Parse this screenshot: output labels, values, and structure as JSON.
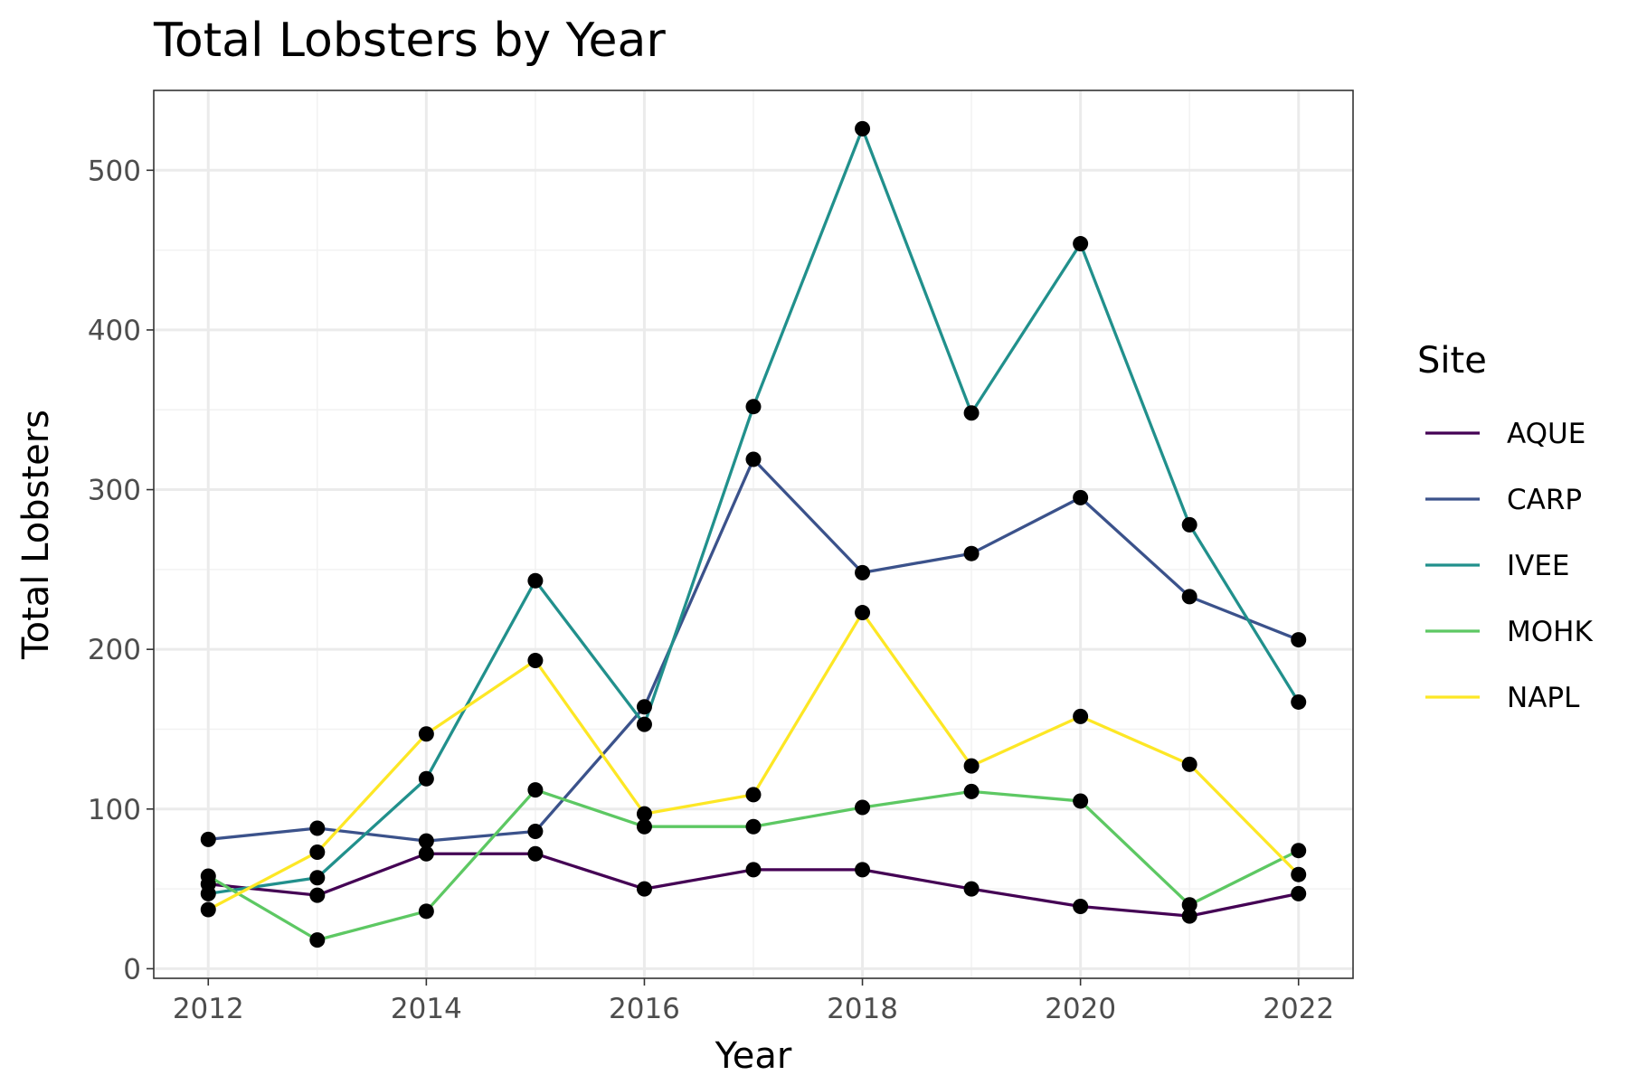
{
  "chart_data": {
    "type": "line",
    "title": "Total Lobsters by Year",
    "xlabel": "Year",
    "ylabel": "Total Lobsters",
    "xlim": [
      2011.5,
      2022.5
    ],
    "ylim": [
      -6,
      550
    ],
    "x_ticks": [
      2012,
      2014,
      2016,
      2018,
      2020,
      2022
    ],
    "y_ticks": [
      0,
      100,
      200,
      300,
      400,
      500
    ],
    "grid": true,
    "legend": {
      "title": "Site",
      "placement": "right"
    },
    "x": [
      2012,
      2013,
      2014,
      2015,
      2016,
      2017,
      2018,
      2019,
      2020,
      2021,
      2022
    ],
    "series": [
      {
        "name": "AQUE",
        "color": "#440154",
        "values": [
          53,
          46,
          72,
          72,
          50,
          62,
          62,
          50,
          39,
          33,
          47
        ]
      },
      {
        "name": "CARP",
        "color": "#3B528B",
        "values": [
          81,
          88,
          80,
          86,
          164,
          319,
          248,
          260,
          295,
          233,
          206
        ]
      },
      {
        "name": "IVEE",
        "color": "#21908C",
        "values": [
          47,
          57,
          119,
          243,
          153,
          352,
          526,
          348,
          454,
          278,
          167
        ]
      },
      {
        "name": "MOHK",
        "color": "#5DC863",
        "values": [
          58,
          18,
          36,
          112,
          89,
          89,
          101,
          111,
          105,
          40,
          74
        ]
      },
      {
        "name": "NAPL",
        "color": "#FDE725",
        "values": [
          37,
          73,
          147,
          193,
          97,
          109,
          223,
          127,
          158,
          128,
          59
        ]
      }
    ]
  }
}
